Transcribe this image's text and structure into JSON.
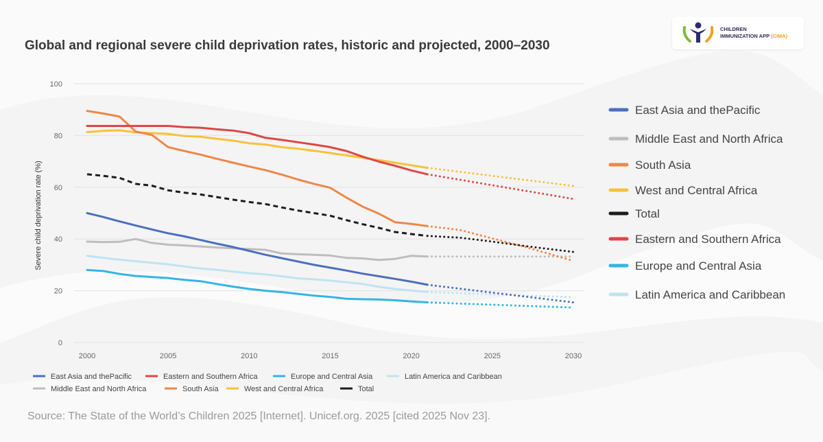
{
  "logo": {
    "line1": "CHILDREN",
    "line2": "IMMUNIZATION APP",
    "accent": "(CIMA)"
  },
  "source": "Source: The State of the World’s Children 2025 [Internet]. Unicef.org. 2025 [cited 2025 Nov 23].",
  "chart_data": {
    "type": "line",
    "title": "Global and regional severe child deprivation rates, historic and projected, 2000–2030",
    "ylabel": "Severe child deprivation rate (%)",
    "xlabel": "",
    "xlim": [
      2000,
      2030
    ],
    "ylim": [
      0,
      100
    ],
    "x_ticks": [
      2000,
      2005,
      2010,
      2015,
      2020,
      2025,
      2030
    ],
    "y_ticks": [
      0,
      20,
      40,
      60,
      80,
      100
    ],
    "grid": true,
    "historic_end": 2021,
    "projection_style": "dotted",
    "series": [
      {
        "name": "East Asia and thePacific",
        "color": "#4a6fc0",
        "historic": [
          [
            2000,
            50
          ],
          [
            2001,
            48.5
          ],
          [
            2002,
            46.8
          ],
          [
            2003,
            45.2
          ],
          [
            2004,
            43.7
          ],
          [
            2005,
            42.2
          ],
          [
            2006,
            41
          ],
          [
            2007,
            39.6
          ],
          [
            2008,
            38.2
          ],
          [
            2009,
            36.9
          ],
          [
            2010,
            35.4
          ],
          [
            2011,
            33.9
          ],
          [
            2012,
            32.6
          ],
          [
            2013,
            31.3
          ],
          [
            2014,
            30
          ],
          [
            2015,
            28.9
          ],
          [
            2016,
            27.8
          ],
          [
            2017,
            26.6
          ],
          [
            2018,
            25.6
          ],
          [
            2019,
            24.6
          ],
          [
            2020,
            23.5
          ],
          [
            2021,
            22.3
          ]
        ],
        "projected": [
          [
            2021,
            22.3
          ],
          [
            2030,
            15.5
          ]
        ]
      },
      {
        "name": "Middle East and North Africa",
        "color": "#bdbdbd",
        "historic": [
          [
            2000,
            39
          ],
          [
            2001,
            38.8
          ],
          [
            2002,
            38.9
          ],
          [
            2003,
            40
          ],
          [
            2004,
            38.5
          ],
          [
            2005,
            37.8
          ],
          [
            2006,
            37.5
          ],
          [
            2007,
            37.1
          ],
          [
            2008,
            36.7
          ],
          [
            2009,
            36.4
          ],
          [
            2010,
            36.1
          ],
          [
            2011,
            35.8
          ],
          [
            2012,
            34.4
          ],
          [
            2013,
            34.1
          ],
          [
            2014,
            33.9
          ],
          [
            2015,
            33.6
          ],
          [
            2016,
            32.7
          ],
          [
            2017,
            32.5
          ],
          [
            2018,
            31.9
          ],
          [
            2019,
            32.3
          ],
          [
            2020,
            33.5
          ],
          [
            2021,
            33.2
          ]
        ],
        "projected": [
          [
            2021,
            33.2
          ],
          [
            2030,
            33.2
          ]
        ]
      },
      {
        "name": "South Asia",
        "color": "#ef8648",
        "historic": [
          [
            2000,
            89.5
          ],
          [
            2001,
            88.5
          ],
          [
            2002,
            87.3
          ],
          [
            2003,
            81.5
          ],
          [
            2004,
            80.2
          ],
          [
            2005,
            75.5
          ],
          [
            2006,
            74
          ],
          [
            2007,
            72.6
          ],
          [
            2008,
            71
          ],
          [
            2009,
            69.5
          ],
          [
            2010,
            68
          ],
          [
            2011,
            66.6
          ],
          [
            2012,
            64.9
          ],
          [
            2013,
            63
          ],
          [
            2014,
            61.3
          ],
          [
            2015,
            59.8
          ],
          [
            2016,
            56
          ],
          [
            2017,
            52.5
          ],
          [
            2018,
            49.8
          ],
          [
            2019,
            46.5
          ],
          [
            2020,
            45.8
          ],
          [
            2021,
            45
          ]
        ],
        "projected": [
          [
            2021,
            45
          ],
          [
            2023,
            43.5
          ],
          [
            2025,
            40.2
          ],
          [
            2027,
            37
          ],
          [
            2030,
            31.5
          ]
        ]
      },
      {
        "name": "West and Central Africa",
        "color": "#f6c239",
        "historic": [
          [
            2000,
            81.3
          ],
          [
            2001,
            81.8
          ],
          [
            2002,
            82
          ],
          [
            2003,
            81.2
          ],
          [
            2004,
            80.9
          ],
          [
            2005,
            80.6
          ],
          [
            2006,
            79.8
          ],
          [
            2007,
            79.5
          ],
          [
            2008,
            78.7
          ],
          [
            2009,
            78
          ],
          [
            2010,
            77
          ],
          [
            2011,
            76.5
          ],
          [
            2012,
            75.5
          ],
          [
            2013,
            74.9
          ],
          [
            2014,
            74.1
          ],
          [
            2015,
            73.2
          ],
          [
            2016,
            72.3
          ],
          [
            2017,
            71.4
          ],
          [
            2018,
            70.5
          ],
          [
            2019,
            69.5
          ],
          [
            2020,
            68.5
          ],
          [
            2021,
            67.5
          ]
        ],
        "projected": [
          [
            2021,
            67.5
          ],
          [
            2030,
            60.5
          ]
        ]
      },
      {
        "name": "Total",
        "color": "#1d1d1d",
        "dashed_historic": true,
        "historic": [
          [
            2000,
            65
          ],
          [
            2001,
            64.4
          ],
          [
            2002,
            63.6
          ],
          [
            2003,
            61.3
          ],
          [
            2004,
            60.6
          ],
          [
            2005,
            58.8
          ],
          [
            2006,
            57.9
          ],
          [
            2007,
            57.2
          ],
          [
            2008,
            56.2
          ],
          [
            2009,
            55.2
          ],
          [
            2010,
            54.3
          ],
          [
            2011,
            53.5
          ],
          [
            2012,
            52.2
          ],
          [
            2013,
            51
          ],
          [
            2014,
            50
          ],
          [
            2015,
            49
          ],
          [
            2016,
            47.3
          ],
          [
            2017,
            45.7
          ],
          [
            2018,
            44.3
          ],
          [
            2019,
            42.7
          ],
          [
            2020,
            41.9
          ],
          [
            2021,
            41.2
          ]
        ],
        "projected": [
          [
            2021,
            41.2
          ],
          [
            2023,
            40.5
          ],
          [
            2025,
            39
          ],
          [
            2027,
            37.3
          ],
          [
            2030,
            35
          ]
        ]
      },
      {
        "name": "Eastern and Southern Africa",
        "color": "#e04545",
        "historic": [
          [
            2000,
            83.7
          ],
          [
            2001,
            83.7
          ],
          [
            2002,
            83.7
          ],
          [
            2003,
            83.7
          ],
          [
            2004,
            83.7
          ],
          [
            2005,
            83.7
          ],
          [
            2006,
            83.2
          ],
          [
            2007,
            83
          ],
          [
            2008,
            82.4
          ],
          [
            2009,
            81.9
          ],
          [
            2010,
            80.9
          ],
          [
            2011,
            79.1
          ],
          [
            2012,
            78.3
          ],
          [
            2013,
            77.4
          ],
          [
            2014,
            76.5
          ],
          [
            2015,
            75.5
          ],
          [
            2016,
            74
          ],
          [
            2017,
            71.8
          ],
          [
            2018,
            69.9
          ],
          [
            2019,
            68.3
          ],
          [
            2020,
            66.5
          ],
          [
            2021,
            65
          ]
        ],
        "projected": [
          [
            2021,
            65
          ],
          [
            2030,
            55.5
          ]
        ]
      },
      {
        "name": "Europe and Central Asia",
        "color": "#33b5e5",
        "historic": [
          [
            2000,
            28
          ],
          [
            2001,
            27.6
          ],
          [
            2002,
            26.5
          ],
          [
            2003,
            25.7
          ],
          [
            2004,
            25.3
          ],
          [
            2005,
            24.9
          ],
          [
            2006,
            24.2
          ],
          [
            2007,
            23.7
          ],
          [
            2008,
            22.6
          ],
          [
            2009,
            21.6
          ],
          [
            2010,
            20.7
          ],
          [
            2011,
            20
          ],
          [
            2012,
            19.5
          ],
          [
            2013,
            18.8
          ],
          [
            2014,
            18.1
          ],
          [
            2015,
            17.6
          ],
          [
            2016,
            16.9
          ],
          [
            2017,
            16.7
          ],
          [
            2018,
            16.6
          ],
          [
            2019,
            16.3
          ],
          [
            2020,
            15.9
          ],
          [
            2021,
            15.5
          ]
        ],
        "projected": [
          [
            2021,
            15.5
          ],
          [
            2030,
            13.5
          ]
        ]
      },
      {
        "name": "Latin America and Caribbean",
        "color": "#bfe3f2",
        "historic": [
          [
            2000,
            33.5
          ],
          [
            2001,
            32.7
          ],
          [
            2002,
            32
          ],
          [
            2003,
            31.4
          ],
          [
            2004,
            30.8
          ],
          [
            2005,
            30.2
          ],
          [
            2006,
            29.4
          ],
          [
            2007,
            28.6
          ],
          [
            2008,
            28.1
          ],
          [
            2009,
            27.4
          ],
          [
            2010,
            26.8
          ],
          [
            2011,
            26.3
          ],
          [
            2012,
            25.6
          ],
          [
            2013,
            24.8
          ],
          [
            2014,
            24.4
          ],
          [
            2015,
            23.9
          ],
          [
            2016,
            23.3
          ],
          [
            2017,
            22.6
          ],
          [
            2018,
            21.5
          ],
          [
            2019,
            20.7
          ],
          [
            2020,
            20.1
          ],
          [
            2021,
            19.5
          ]
        ],
        "projected": [
          [
            2021,
            19.5
          ],
          [
            2030,
            17.5
          ]
        ]
      }
    ],
    "right_legend": [
      "East Asia and thePacific",
      "Middle East and North Africa",
      "South Asia",
      "West and Central Africa",
      "Total",
      "Eastern and Southern Africa",
      "Europe and Central Asia",
      "Latin America and Caribbean"
    ],
    "bottom_legend": [
      [
        "East Asia and thePacific",
        "Eastern and Southern Africa",
        "Europe and Central Asia",
        "Latin America and Caribbean"
      ],
      [
        "Middle East and North Africa",
        "South Asia",
        "West and Central Africa",
        "Total"
      ]
    ]
  }
}
